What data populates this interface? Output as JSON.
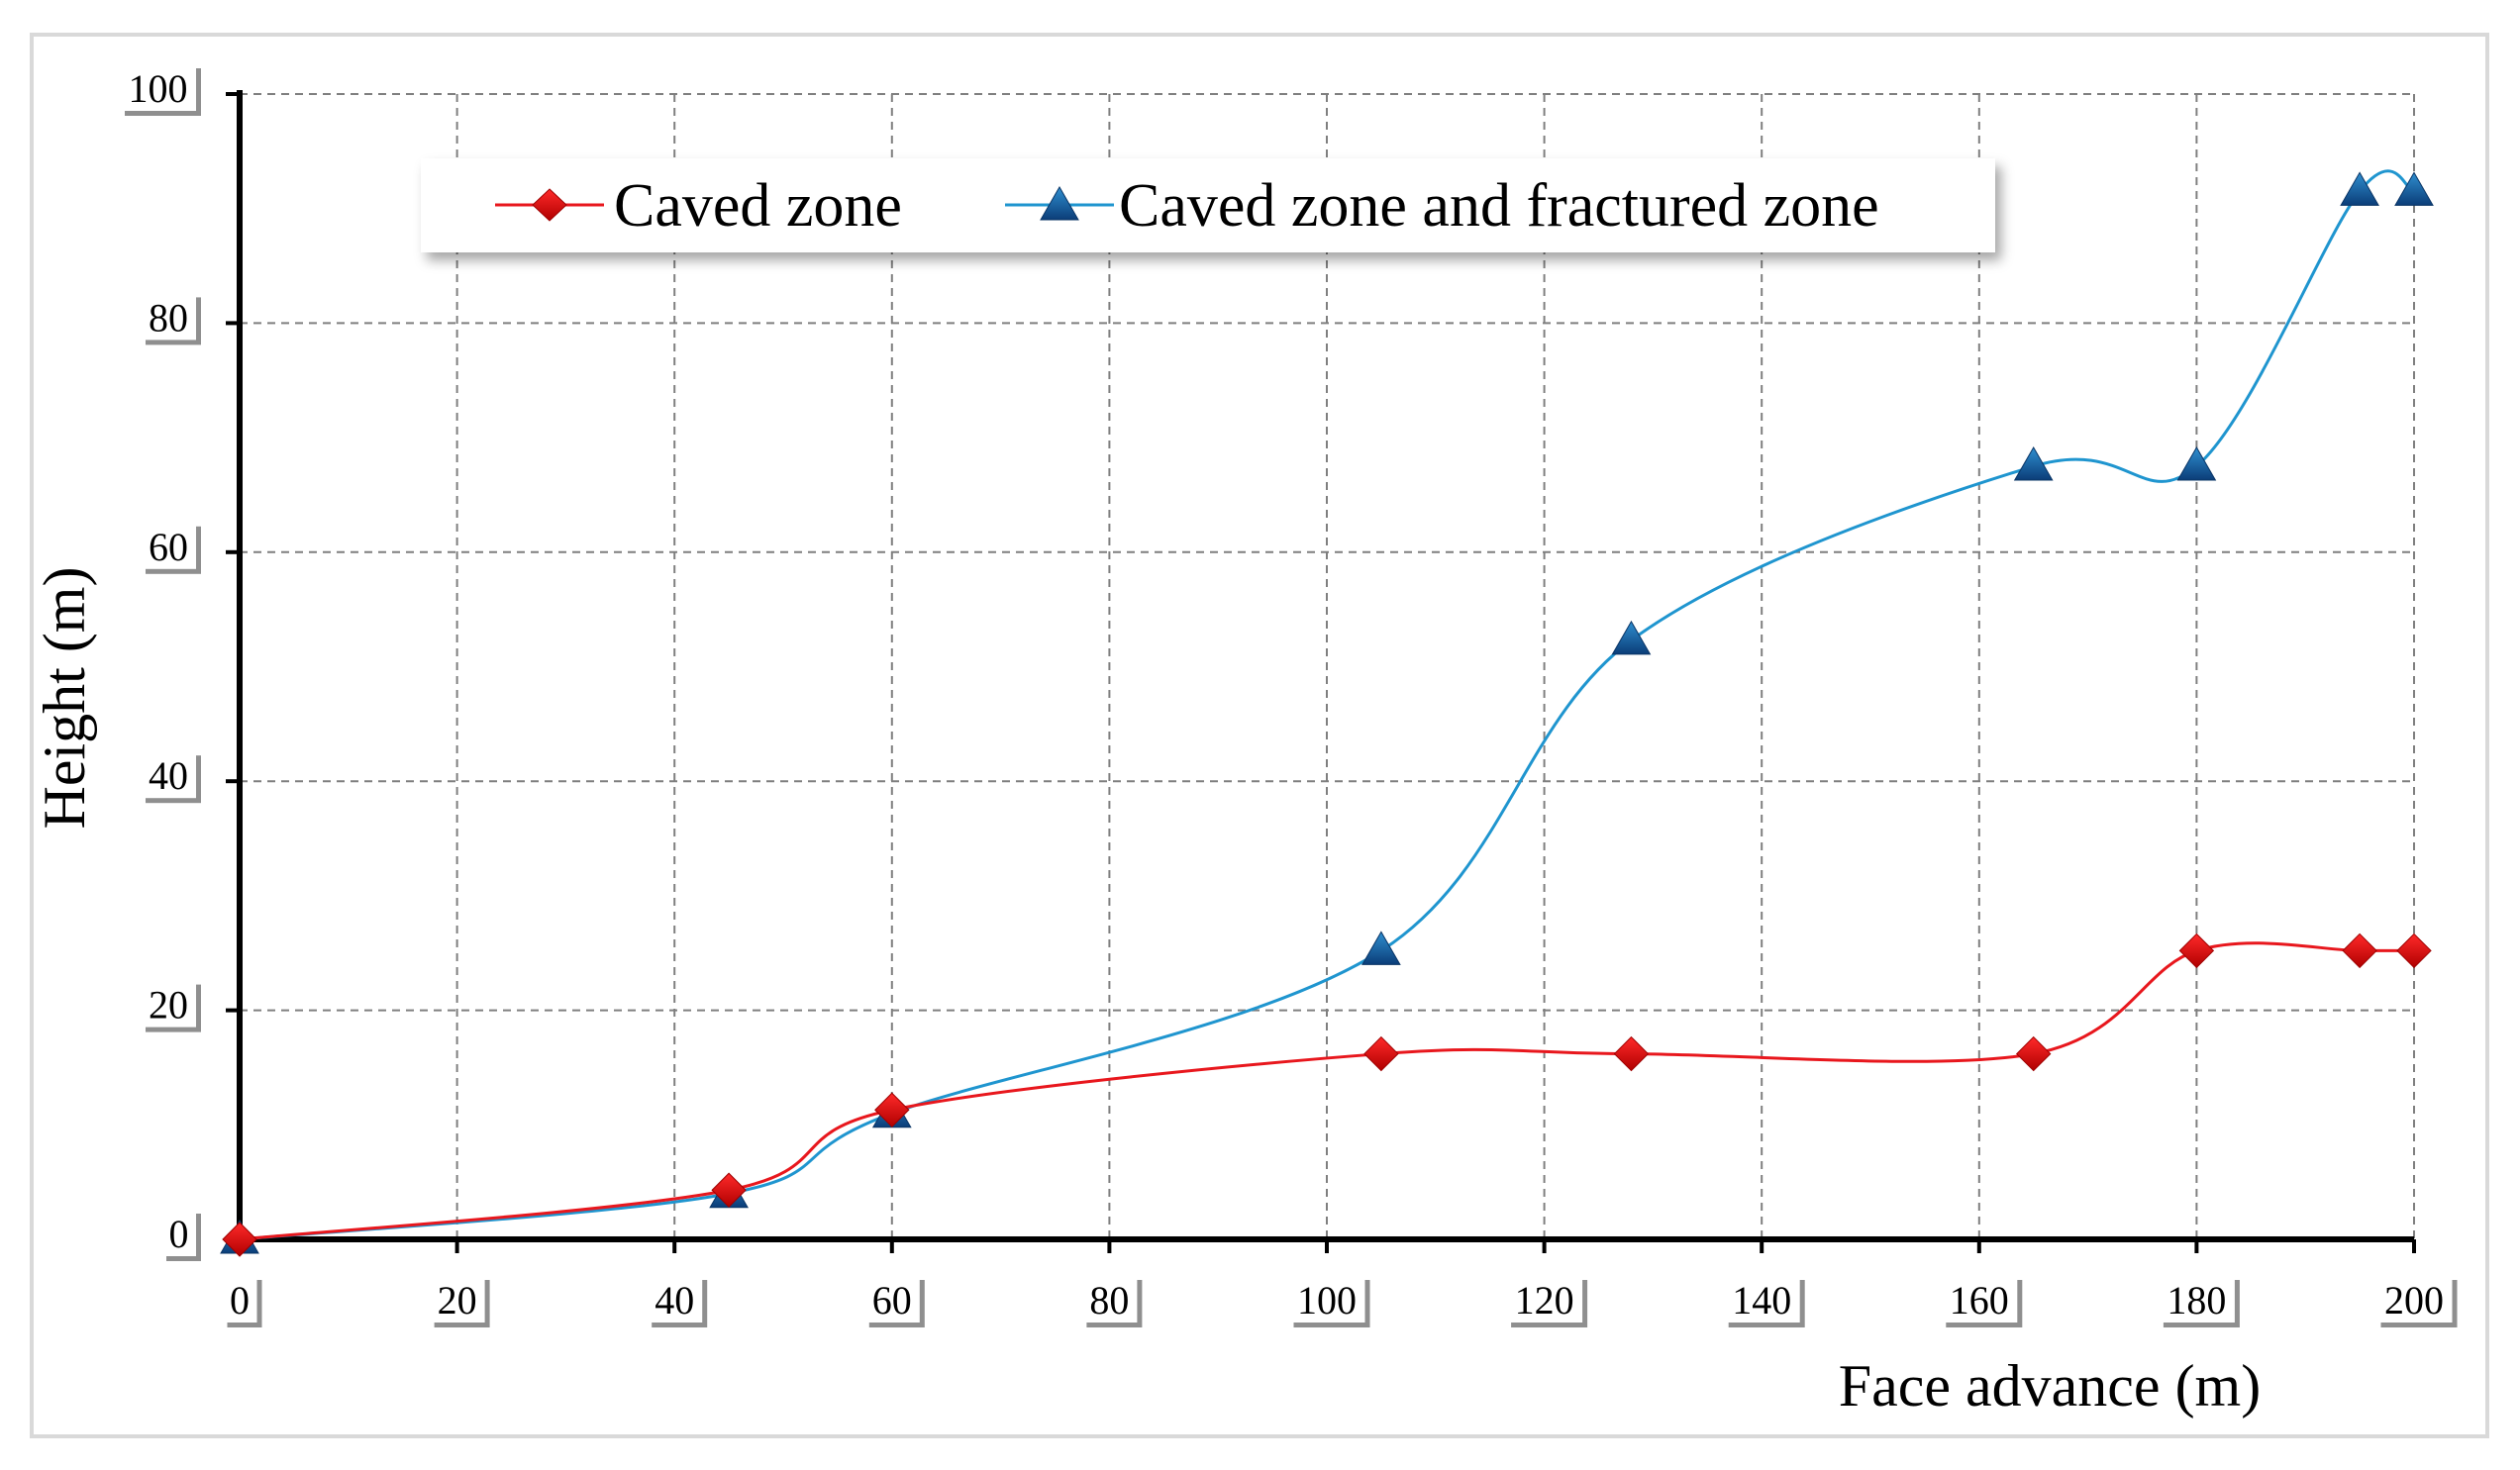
{
  "chart_data": {
    "type": "line",
    "title": "",
    "xlabel": "Face advance (m)",
    "ylabel": "Height (m)",
    "xlim": [
      0,
      200
    ],
    "ylim": [
      0,
      100
    ],
    "x_ticks": [
      "0",
      "20",
      "40",
      "60",
      "80",
      "100",
      "120",
      "140",
      "160",
      "180",
      "200"
    ],
    "y_ticks": [
      "0",
      "20",
      "40",
      "60",
      "80",
      "100"
    ],
    "grid": true,
    "legend_position": "top",
    "series": [
      {
        "name": "Caved zone",
        "color": "#e8171d",
        "marker": "diamond",
        "x": [
          0,
          45,
          60,
          105,
          128,
          165,
          180,
          195,
          200
        ],
        "y": [
          0,
          4.3,
          11.3,
          16.2,
          16.2,
          16.2,
          25.2,
          25.2,
          25.2
        ]
      },
      {
        "name": "Caved zone and fractured zone",
        "color": "#1f95cf",
        "marker": "triangle",
        "x": [
          0,
          45,
          60,
          105,
          128,
          165,
          180,
          195,
          200
        ],
        "y": [
          0,
          4.0,
          11.0,
          25.2,
          52.3,
          67.5,
          67.5,
          91.5,
          91.5
        ]
      }
    ]
  }
}
